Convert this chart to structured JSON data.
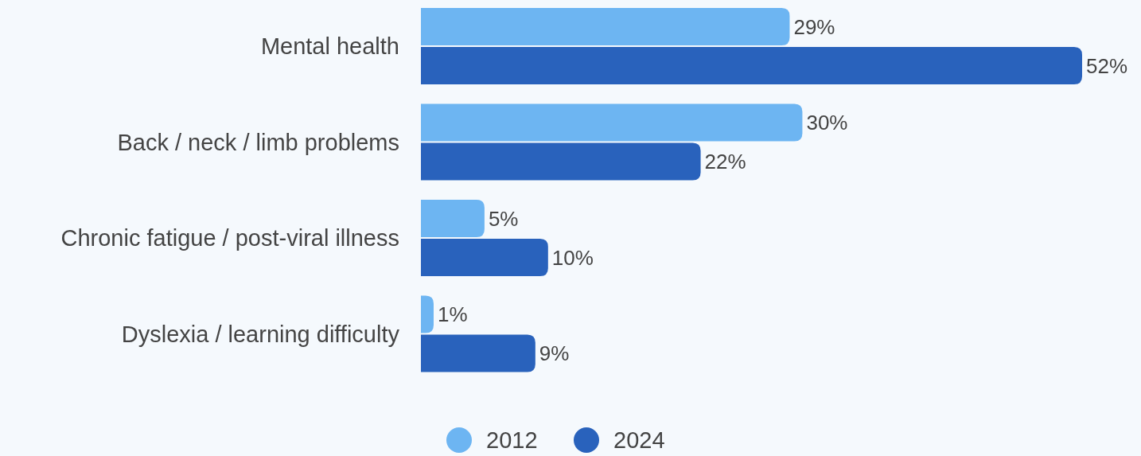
{
  "chart_data": {
    "type": "bar",
    "orientation": "horizontal",
    "categories": [
      "Mental health",
      "Back / neck / limb problems",
      "Chronic fatigue / post-viral illness",
      "Dyslexia / learning difficulty"
    ],
    "series": [
      {
        "name": "2012",
        "color": "#6db5f2",
        "values": [
          29,
          30,
          5,
          1
        ],
        "value_labels": [
          "29%",
          "30%",
          "5%",
          "1%"
        ]
      },
      {
        "name": "2024",
        "color": "#2962bc",
        "values": [
          52,
          22,
          10,
          9
        ],
        "value_labels": [
          "52%",
          "22%",
          "10%",
          "9%"
        ]
      }
    ],
    "legend": "bottom"
  }
}
